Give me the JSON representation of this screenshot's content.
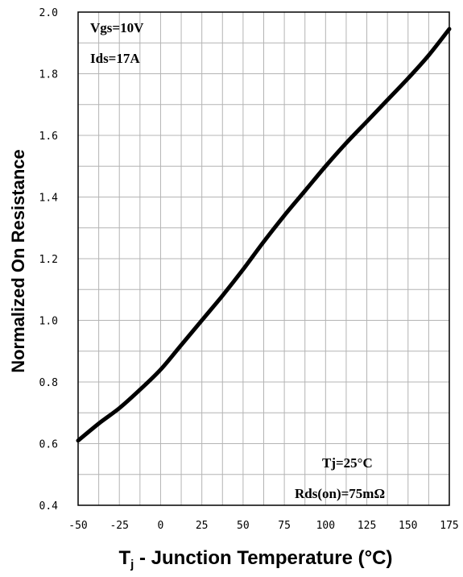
{
  "chart_data": {
    "type": "line",
    "xlabel_main": "T",
    "xlabel_sub": "j",
    "xlabel_rest": " - Junction Temperature (°C)",
    "ylabel": "Normalized On Resistance",
    "xlim": [
      -50,
      175
    ],
    "ylim": [
      0.4,
      2.0
    ],
    "x_ticks": [
      -50,
      -25,
      0,
      25,
      50,
      75,
      100,
      125,
      150,
      175
    ],
    "x_tick_labels": [
      "-50",
      "-25",
      "0",
      "25",
      "50",
      "75",
      "100",
      "125",
      "150",
      "175"
    ],
    "y_ticks": [
      0.4,
      0.6,
      0.8,
      1.0,
      1.2,
      1.4,
      1.6,
      1.8,
      2.0
    ],
    "y_tick_labels": [
      "0.4",
      "0.6",
      "0.8",
      "1.0",
      "1.2",
      "1.4",
      "1.6",
      "1.8",
      "2.0"
    ],
    "grid": true,
    "series": [
      {
        "x": [
          -50,
          -37.5,
          -25,
          -12.5,
          0,
          12.5,
          25,
          37.5,
          50,
          62.5,
          75,
          87.5,
          100,
          112.5,
          125,
          137.5,
          150,
          162.5,
          175
        ],
        "y": [
          0.61,
          0.665,
          0.715,
          0.775,
          0.84,
          0.92,
          1.0,
          1.08,
          1.165,
          1.255,
          1.34,
          1.42,
          1.5,
          1.575,
          1.645,
          1.715,
          1.785,
          1.86,
          1.945
        ]
      }
    ],
    "annotations": {
      "top_left": [
        "Vgs=10V",
        "Ids=17A"
      ],
      "bottom_right": [
        "Tj=25°C",
        "Rds(on)=75mΩ"
      ]
    }
  }
}
